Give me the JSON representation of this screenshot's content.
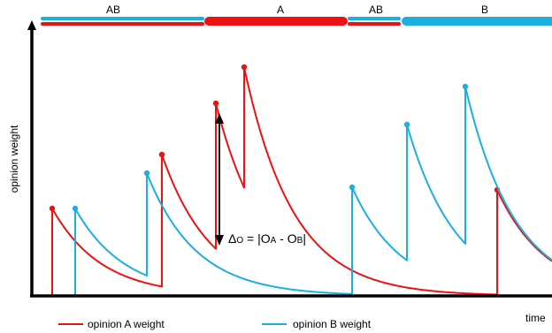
{
  "chart_data": {
    "type": "line",
    "title": "",
    "xlabel": "time",
    "ylabel": "opinion weight",
    "grid": false,
    "legend_position": "bottom",
    "dominance_bar": {
      "segments": [
        {
          "label": "AB",
          "state": "both"
        },
        {
          "label": "A",
          "state": "A"
        },
        {
          "label": "AB",
          "state": "both"
        },
        {
          "label": "B",
          "state": "B"
        }
      ]
    },
    "annotation": {
      "text": "ΔO = |OA - OB|",
      "prefix": "Δ",
      "sub1": "O",
      "mid1": " = |O",
      "sub2": "A",
      "mid2": " - O",
      "sub3": "B",
      "suffix": "|"
    },
    "series": [
      {
        "name": "opinion A weight",
        "color": "#ee1111",
        "events": [
          {
            "t": 59,
            "w": 236
          },
          {
            "t": 183,
            "w": 175
          },
          {
            "t": 244,
            "w": 117
          },
          {
            "t": 276,
            "w": 76
          },
          {
            "t": 562,
            "w": 215
          }
        ]
      },
      {
        "name": "opinion B weight",
        "color": "#1ab0e0",
        "events": [
          {
            "t": 85,
            "w": 236
          },
          {
            "t": 166,
            "w": 196
          },
          {
            "t": 398,
            "w": 212
          },
          {
            "t": 460,
            "w": 141
          },
          {
            "t": 526,
            "w": 98
          }
        ]
      }
    ],
    "legend": [
      {
        "label": "opinion A weight",
        "color": "#ee1111"
      },
      {
        "label": "opinion B weight",
        "color": "#1ab0e0"
      }
    ]
  }
}
